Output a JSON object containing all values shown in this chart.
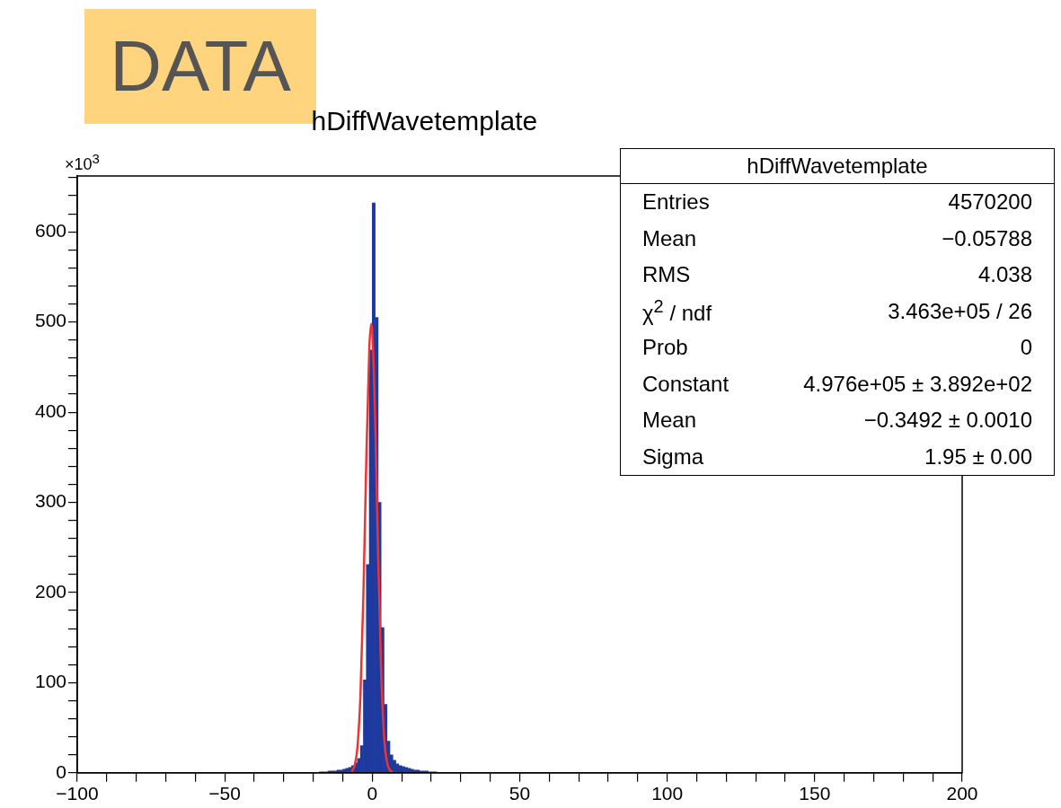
{
  "chart_data": {
    "type": "histogram",
    "title": "hDiffWavetemplate",
    "annotations": [
      "DATA",
      "×10$^{3}$",
      "hDiffWavetemplate",
      "Entries\t4570200",
      "Mean\t−0.05788",
      "RMS\t4.038",
      "χ$^{2}$ / ndf\t3.463e+05 / 26",
      "Prob\t0",
      "Constant\t4.976e+05 ± 3.892e+02",
      "Mean\t−0.3492 ± 0.0010",
      "Sigma\t1.95 ± 0.00"
    ],
    "series": [
      {
        "type": "histogram",
        "color": "#1f3a9e",
        "bins": [
          -18,
          -17,
          -16,
          -15,
          -14,
          -13,
          -12,
          -11,
          -10,
          -9,
          -8,
          -7,
          -6,
          -5,
          -4,
          -3,
          -2,
          -1,
          0,
          1,
          2,
          3,
          4,
          5,
          6,
          7,
          8,
          9,
          10,
          11,
          12,
          13,
          14,
          15,
          16,
          17,
          18,
          19,
          20,
          21,
          22
        ],
        "values": [
          1,
          1,
          1,
          2,
          2,
          2,
          3,
          3,
          4,
          5,
          6,
          8,
          11,
          16,
          30,
          103,
          231,
          469,
          632,
          505,
          300,
          161,
          76,
          35,
          20,
          14,
          10,
          8,
          7,
          6,
          5,
          4,
          3,
          3,
          2,
          2,
          2,
          1,
          1,
          1
        ]
      },
      {
        "type": "line",
        "color": "#ee3333",
        "x": [
          -7,
          -6,
          -5,
          -4,
          -3,
          -2,
          -1,
          -0.35,
          0,
          1,
          2,
          3,
          4,
          5,
          6,
          7
        ],
        "values": [
          1,
          8,
          29,
          86,
          197,
          348,
          470,
          498,
          490,
          391,
          240,
          115,
          41,
          12,
          3,
          1
        ]
      }
    ],
    "xlim": [
      -100,
      200
    ],
    "xticks": [
      -100,
      {
        "value": -90,
        "label": null
      },
      {
        "value": -80,
        "label": null
      },
      {
        "value": -70,
        "label": null
      },
      {
        "value": -60,
        "label": null
      },
      -50,
      {
        "value": -40,
        "label": null
      },
      {
        "value": -30,
        "label": null
      },
      {
        "value": -20,
        "label": null
      },
      {
        "value": -10,
        "label": null
      },
      0,
      {
        "value": 10,
        "label": null
      },
      {
        "value": 20,
        "label": null
      },
      {
        "value": 30,
        "label": null
      },
      {
        "value": 40,
        "label": null
      },
      50,
      {
        "value": 60,
        "label": null
      },
      {
        "value": 70,
        "label": null
      },
      {
        "value": 80,
        "label": null
      },
      {
        "value": 90,
        "label": null
      },
      100,
      {
        "value": 110,
        "label": null
      },
      {
        "value": 120,
        "label": null
      },
      {
        "value": 130,
        "label": null
      },
      {
        "value": 140,
        "label": null
      },
      150,
      {
        "value": 160,
        "label": null
      },
      {
        "value": 170,
        "label": null
      },
      {
        "value": 180,
        "label": null
      },
      {
        "value": 190,
        "label": null
      },
      200
    ],
    "ylim": [
      0,
      662
    ],
    "yticks": [
      0,
      {
        "value": 20,
        "label": null
      },
      {
        "value": 40,
        "label": null
      },
      {
        "value": 60,
        "label": null
      },
      {
        "value": 80,
        "label": null
      },
      100,
      {
        "value": 120,
        "label": null
      },
      {
        "value": 140,
        "label": null
      },
      {
        "value": 160,
        "label": null
      },
      {
        "value": 180,
        "label": null
      },
      200,
      {
        "value": 220,
        "label": null
      },
      {
        "value": 240,
        "label": null
      },
      {
        "value": 260,
        "label": null
      },
      {
        "value": 280,
        "label": null
      },
      300,
      {
        "value": 320,
        "label": null
      },
      {
        "value": 340,
        "label": null
      },
      {
        "value": 360,
        "label": null
      },
      {
        "value": 380,
        "label": null
      },
      400,
      {
        "value": 420,
        "label": null
      },
      {
        "value": 440,
        "label": null
      },
      {
        "value": 460,
        "label": null
      },
      {
        "value": 480,
        "label": null
      },
      500,
      {
        "value": 520,
        "label": null
      },
      {
        "value": 540,
        "label": null
      },
      {
        "value": 560,
        "label": null
      },
      {
        "value": 580,
        "label": null
      },
      600,
      {
        "value": 620,
        "label": null
      },
      {
        "value": 640,
        "label": null
      },
      {
        "value": 660,
        "label": null
      }
    ],
    "grid": false,
    "legend": false,
    "marker": "none",
    "line_style": "solid"
  }
}
